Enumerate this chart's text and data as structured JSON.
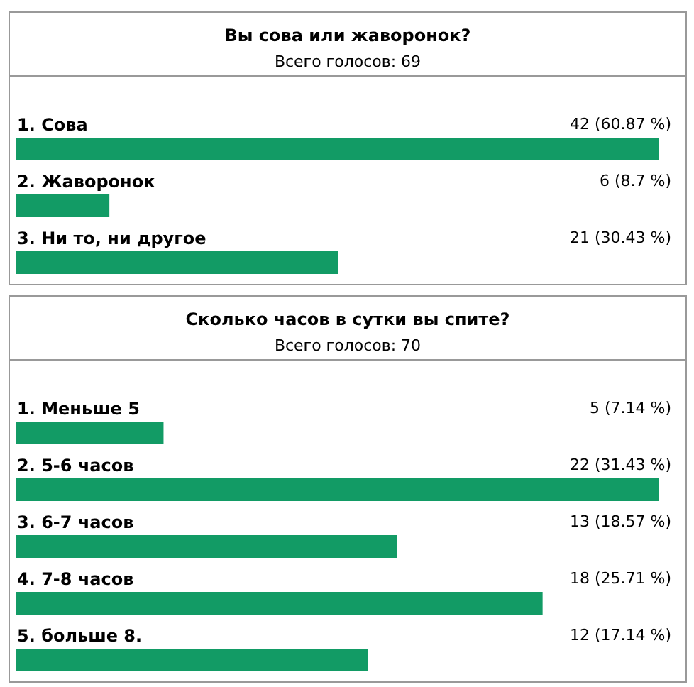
{
  "chart_data": [
    {
      "type": "bar",
      "orientation": "horizontal",
      "title": "Вы сова или жаворонок?",
      "subtitle": "Всего голосов: 69",
      "categories": [
        "1. Сова",
        "2. Жаворонок",
        "3. Ни то, ни другое"
      ],
      "values": [
        42,
        6,
        21
      ],
      "value_labels": [
        "42 (60.87 %)",
        "6 (8.7 %)",
        "21 (30.43 %)"
      ],
      "color": "#129b65"
    },
    {
      "type": "bar",
      "orientation": "horizontal",
      "title": "Сколько часов в сутки вы спите?",
      "subtitle": "Всего голосов: 70",
      "categories": [
        "1. Меньше 5",
        "2. 5-6 часов",
        "3. 6-7 часов",
        "4. 7-8 часов",
        "5. больше 8."
      ],
      "values": [
        5,
        22,
        13,
        18,
        12
      ],
      "value_labels": [
        "5 (7.14 %)",
        "22 (31.43 %)",
        "13 (18.57 %)",
        "18 (25.71 %)",
        "12 (17.14 %)"
      ],
      "color": "#129b65"
    }
  ]
}
